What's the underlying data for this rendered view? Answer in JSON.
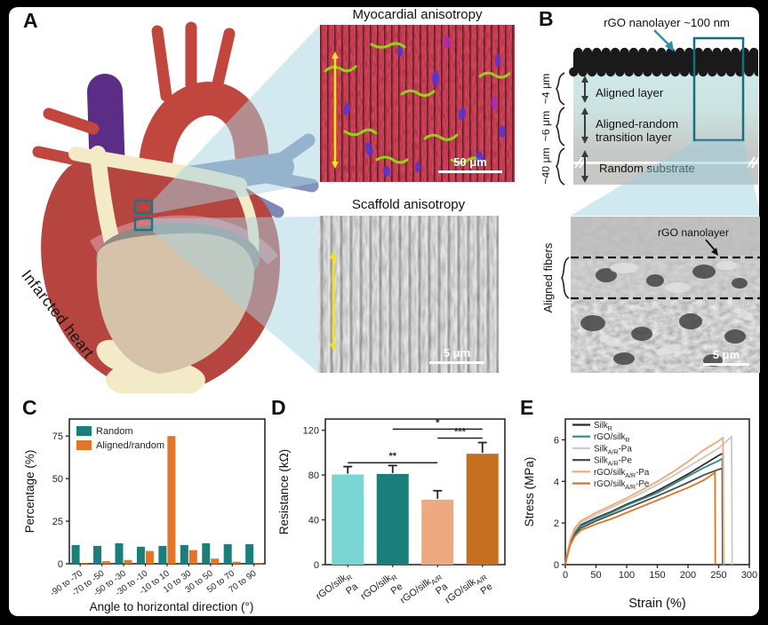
{
  "panels": {
    "a": {
      "label": "A",
      "heart_caption": "Infarcted heart",
      "inset1_title": "Myocardial anisotropy",
      "inset1_scale": "50 μm",
      "inset2_title": "Scaffold anisotropy",
      "inset2_scale": "5 μm"
    },
    "b": {
      "label": "B",
      "nanolayer_note": "rGO nanolayer ~100 nm",
      "layer1_thickness": "~4 μm",
      "layer1_name": "Aligned layer",
      "layer2_thickness": "~6 μm",
      "layer2_name_line1": "Aligned-random",
      "layer2_name_line2": "transition layer",
      "layer3_thickness": "~40 μm",
      "layer3_name": "Random substrate",
      "sem_annotation": "rGO nanolayer",
      "sem_side_label": "Aligned fibers",
      "sem_scale": "5 μm"
    },
    "c": {
      "label": "C"
    },
    "d": {
      "label": "D"
    },
    "e": {
      "label": "E"
    }
  },
  "chart_data": [
    {
      "type": "bar",
      "xlabel": "Angle to horizontal direction (°)",
      "ylabel": "Percentage (%)",
      "ylim": [
        0,
        85
      ],
      "yticks": [
        0,
        25,
        50,
        75
      ],
      "grid": false,
      "legend_position": "top-left",
      "categories": [
        "-90 to -70",
        "-70 to -50",
        "-50 to -30",
        "-30 to -10",
        "-10 to 10",
        "10 to 30",
        "30 to 50",
        "50 to 70",
        "70 to 90"
      ],
      "series": [
        {
          "name": "Random",
          "color": "#1a7f7a",
          "values": [
            11,
            10.5,
            12,
            10,
            10.5,
            11,
            12,
            11.5,
            11.5
          ]
        },
        {
          "name": "Aligned/random",
          "color": "#e1762a",
          "values": [
            0.4,
            1.5,
            2.2,
            7.5,
            75,
            8,
            3,
            1.2,
            0.4
          ]
        }
      ]
    },
    {
      "type": "bar",
      "ylabel": "Resistance (kΩ)",
      "ylim": [
        0,
        130
      ],
      "yticks": [
        0,
        40,
        80,
        120
      ],
      "grid": false,
      "values": [
        80.5,
        81,
        58,
        99
      ],
      "errors": [
        7,
        7.5,
        8,
        10
      ],
      "colors": [
        "#79d6d2",
        "#1a7f7a",
        "#edaa80",
        "#c66f20"
      ],
      "tick_labels": [
        {
          "line1": [
            {
              "t": "rGO/silk"
            },
            {
              "t": "R",
              "sub": true
            }
          ],
          "line2": "Pa"
        },
        {
          "line1": [
            {
              "t": "rGO/silk"
            },
            {
              "t": "R",
              "sub": true
            }
          ],
          "line2": "Pe"
        },
        {
          "line1": [
            {
              "t": "rGO/silk"
            },
            {
              "t": "A/R",
              "sub": true
            }
          ],
          "line2": "Pa"
        },
        {
          "line1": [
            {
              "t": "rGO/silk"
            },
            {
              "t": "A/R",
              "sub": true
            }
          ],
          "line2": "Pe"
        }
      ],
      "significance": [
        {
          "from": 0,
          "to": 2,
          "y": 91,
          "label": "**"
        },
        {
          "from": 2,
          "to": 3,
          "y": 113,
          "label": "***"
        },
        {
          "from": 1,
          "to": 3,
          "y": 121,
          "label": "*"
        }
      ]
    },
    {
      "type": "line",
      "xlabel": "Strain (%)",
      "ylabel": "Stress (MPa)",
      "xlim": [
        0,
        300
      ],
      "ylim": [
        0,
        7
      ],
      "xticks": [
        0,
        50,
        100,
        150,
        200,
        250,
        300
      ],
      "yticks": [
        0,
        2,
        4,
        6
      ],
      "grid": false,
      "legend_position": "top-left",
      "series": [
        {
          "name_parts": [
            {
              "t": "Silk"
            },
            {
              "t": "R",
              "sub": true
            }
          ],
          "color": "#2b2b2b",
          "points": [
            [
              0,
              0
            ],
            [
              3,
              0.5
            ],
            [
              8,
              1.1
            ],
            [
              15,
              1.6
            ],
            [
              25,
              1.9
            ],
            [
              50,
              2.25
            ],
            [
              75,
              2.55
            ],
            [
              100,
              2.9
            ],
            [
              125,
              3.2
            ],
            [
              150,
              3.55
            ],
            [
              175,
              3.95
            ],
            [
              200,
              4.35
            ],
            [
              225,
              4.8
            ],
            [
              250,
              5.25
            ],
            [
              257,
              5.35
            ],
            [
              257.5,
              0
            ]
          ]
        },
        {
          "name_parts": [
            {
              "t": "rGO/silk"
            },
            {
              "t": "R",
              "sub": true
            }
          ],
          "color": "#2e8b84",
          "points": [
            [
              0,
              0
            ],
            [
              3,
              0.45
            ],
            [
              8,
              1.05
            ],
            [
              15,
              1.55
            ],
            [
              25,
              1.85
            ],
            [
              50,
              2.2
            ],
            [
              75,
              2.5
            ],
            [
              100,
              2.85
            ],
            [
              125,
              3.15
            ],
            [
              150,
              3.45
            ],
            [
              175,
              3.85
            ],
            [
              200,
              4.25
            ],
            [
              225,
              4.65
            ],
            [
              250,
              5.0
            ],
            [
              256,
              5.1
            ],
            [
              256.5,
              0
            ]
          ]
        },
        {
          "name_parts": [
            {
              "t": "Silk"
            },
            {
              "t": "A/R",
              "sub": true
            },
            {
              "t": "-Pa"
            }
          ],
          "color": "#c9c9c9",
          "points": [
            [
              0,
              0
            ],
            [
              3,
              0.5
            ],
            [
              8,
              1.15
            ],
            [
              15,
              1.65
            ],
            [
              25,
              2.0
            ],
            [
              50,
              2.4
            ],
            [
              75,
              2.75
            ],
            [
              100,
              3.1
            ],
            [
              125,
              3.45
            ],
            [
              150,
              3.85
            ],
            [
              175,
              4.25
            ],
            [
              200,
              4.7
            ],
            [
              225,
              5.15
            ],
            [
              250,
              5.6
            ],
            [
              271,
              6.15
            ],
            [
              272,
              0
            ]
          ]
        },
        {
          "name_parts": [
            {
              "t": "Silk"
            },
            {
              "t": "A/R",
              "sub": true
            },
            {
              "t": "-Pe"
            }
          ],
          "color": "#4c4c4c",
          "points": [
            [
              0,
              0
            ],
            [
              3,
              0.45
            ],
            [
              8,
              1.0
            ],
            [
              15,
              1.45
            ],
            [
              25,
              1.75
            ],
            [
              50,
              2.1
            ],
            [
              75,
              2.4
            ],
            [
              100,
              2.7
            ],
            [
              125,
              3.0
            ],
            [
              150,
              3.3
            ],
            [
              175,
              3.62
            ],
            [
              200,
              3.95
            ],
            [
              225,
              4.3
            ],
            [
              250,
              4.58
            ],
            [
              256,
              4.62
            ],
            [
              256.5,
              0
            ]
          ]
        },
        {
          "name_parts": [
            {
              "t": "rGO/silk"
            },
            {
              "t": "A/R",
              "sub": true
            },
            {
              "t": "-Pa"
            }
          ],
          "color": "#f2a775",
          "points": [
            [
              0,
              0
            ],
            [
              3,
              0.55
            ],
            [
              8,
              1.2
            ],
            [
              15,
              1.75
            ],
            [
              25,
              2.1
            ],
            [
              50,
              2.5
            ],
            [
              75,
              2.85
            ],
            [
              100,
              3.2
            ],
            [
              125,
              3.6
            ],
            [
              150,
              4.0
            ],
            [
              175,
              4.45
            ],
            [
              200,
              4.95
            ],
            [
              225,
              5.5
            ],
            [
              250,
              5.95
            ],
            [
              257,
              6.1
            ],
            [
              258,
              0
            ]
          ]
        },
        {
          "name_parts": [
            {
              "t": "rGO/silk"
            },
            {
              "t": "A/R",
              "sub": true
            },
            {
              "t": "-Pe"
            }
          ],
          "color": "#e0711f",
          "points": [
            [
              0,
              0
            ],
            [
              3,
              0.4
            ],
            [
              8,
              0.95
            ],
            [
              15,
              1.35
            ],
            [
              25,
              1.65
            ],
            [
              50,
              1.95
            ],
            [
              75,
              2.2
            ],
            [
              100,
              2.5
            ],
            [
              125,
              2.8
            ],
            [
              150,
              3.1
            ],
            [
              175,
              3.4
            ],
            [
              200,
              3.7
            ],
            [
              225,
              4.05
            ],
            [
              243,
              4.4
            ],
            [
              244,
              4.42
            ],
            [
              244.5,
              0
            ]
          ]
        }
      ]
    }
  ]
}
